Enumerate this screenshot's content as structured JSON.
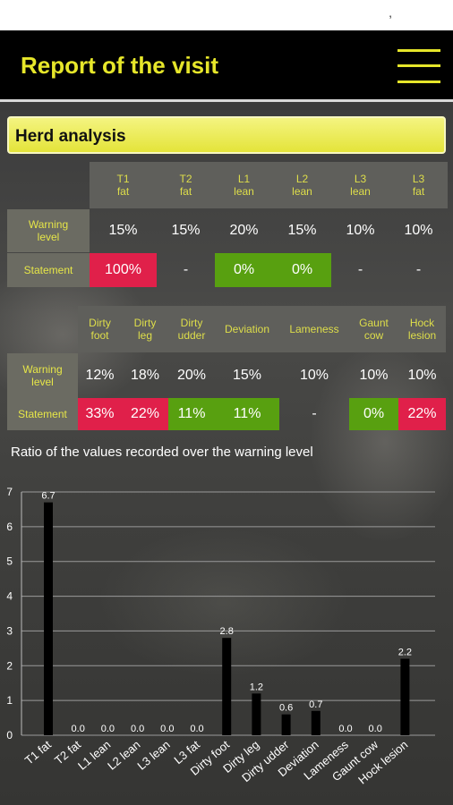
{
  "statusbar": {
    "mark": ","
  },
  "header": {
    "title": "Report of the visit",
    "menu_icon": "hamburger-menu-icon"
  },
  "section": {
    "title": "Herd analysis"
  },
  "table1": {
    "columns": [
      "T1\nfat",
      "T2\nfat",
      "L1\nlean",
      "L2\nlean",
      "L3\nlean",
      "L3\nfat"
    ],
    "warning_label": "Warning\nlevel",
    "statement_label": "Statement",
    "warning": [
      "15%",
      "15%",
      "20%",
      "15%",
      "10%",
      "10%"
    ],
    "statement": [
      "100%",
      "-",
      "0%",
      "0%",
      "-",
      "-"
    ],
    "statement_status": [
      "red",
      "none",
      "green",
      "green",
      "none",
      "none"
    ]
  },
  "table2": {
    "columns": [
      "Dirty\nfoot",
      "Dirty\nleg",
      "Dirty\nudder",
      "Deviation",
      "Lameness",
      "Gaunt\ncow",
      "Hock\nlesion"
    ],
    "warning_label": "Warning\nlevel",
    "statement_label": "Statement",
    "warning": [
      "12%",
      "18%",
      "20%",
      "15%",
      "10%",
      "10%",
      "10%"
    ],
    "statement": [
      "33%",
      "22%",
      "11%",
      "11%",
      "-",
      "0%",
      "22%"
    ],
    "statement_status": [
      "red",
      "red",
      "green",
      "green",
      "none",
      "green",
      "red"
    ]
  },
  "colors": {
    "accent": "#e6e62a",
    "red": "#e0204a",
    "green": "#58a010"
  },
  "chart_title": "Ratio of the values recorded over the warning level",
  "chart_data": {
    "type": "bar",
    "title": "Ratio of the values recorded over the warning level",
    "categories": [
      "T1 fat",
      "T2 fat",
      "L1 lean",
      "L2 lean",
      "L3 lean",
      "L3 fat",
      "Dirty foot",
      "Dirty leg",
      "Dirty udder",
      "Deviation",
      "Lameness",
      "Gaunt cow",
      "Hock lesion"
    ],
    "values": [
      6.7,
      0.0,
      0.0,
      0.0,
      0.0,
      0.0,
      2.8,
      1.2,
      0.6,
      0.7,
      0.0,
      0.0,
      2.2
    ],
    "value_labels": [
      "6.7",
      "0.0",
      "0.0",
      "0.0",
      "0.0",
      "0.0",
      "2.8",
      "1.2",
      "0.6",
      "0.7",
      "0.0",
      "0.0",
      "2.2"
    ],
    "yticks": [
      "0",
      "1",
      "2",
      "3",
      "4",
      "5",
      "6",
      "7"
    ],
    "ylim": [
      0,
      7
    ],
    "grid": true,
    "bar_color": "#000000"
  }
}
